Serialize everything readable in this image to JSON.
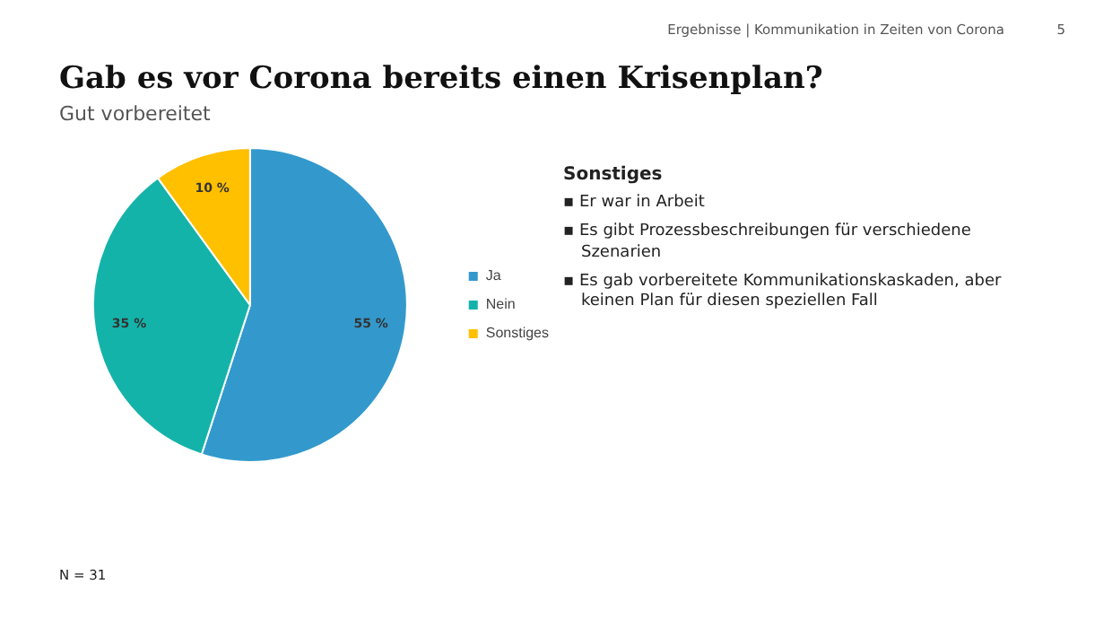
{
  "chart_data": {
    "type": "pie",
    "title": "Gab es vor Corona bereits einen Krisenplan?",
    "subtitle": "Gut vorbereitet",
    "categories": [
      "Ja",
      "Nein",
      "Sonstiges"
    ],
    "values": [
      55,
      35,
      10
    ],
    "colors": [
      "#3399cc",
      "#14b3aa",
      "#ffc000"
    ],
    "value_labels": [
      "55 %",
      "35 %",
      "10 %"
    ],
    "legend": "right",
    "annotations": [
      "Ergebnisse | Kommunikation in Zeiten von Corona",
      "5",
      "Sonstiges",
      "▪ Er war in Arbeit",
      "▪ Es gibt Prozessbeschreibungen für verschiedene Szenarien",
      "▪ Es gab vorbereitete Kommunikationskaskaden, aber keinen Plan für diesen speziellen Fall",
      "N = 31"
    ]
  }
}
